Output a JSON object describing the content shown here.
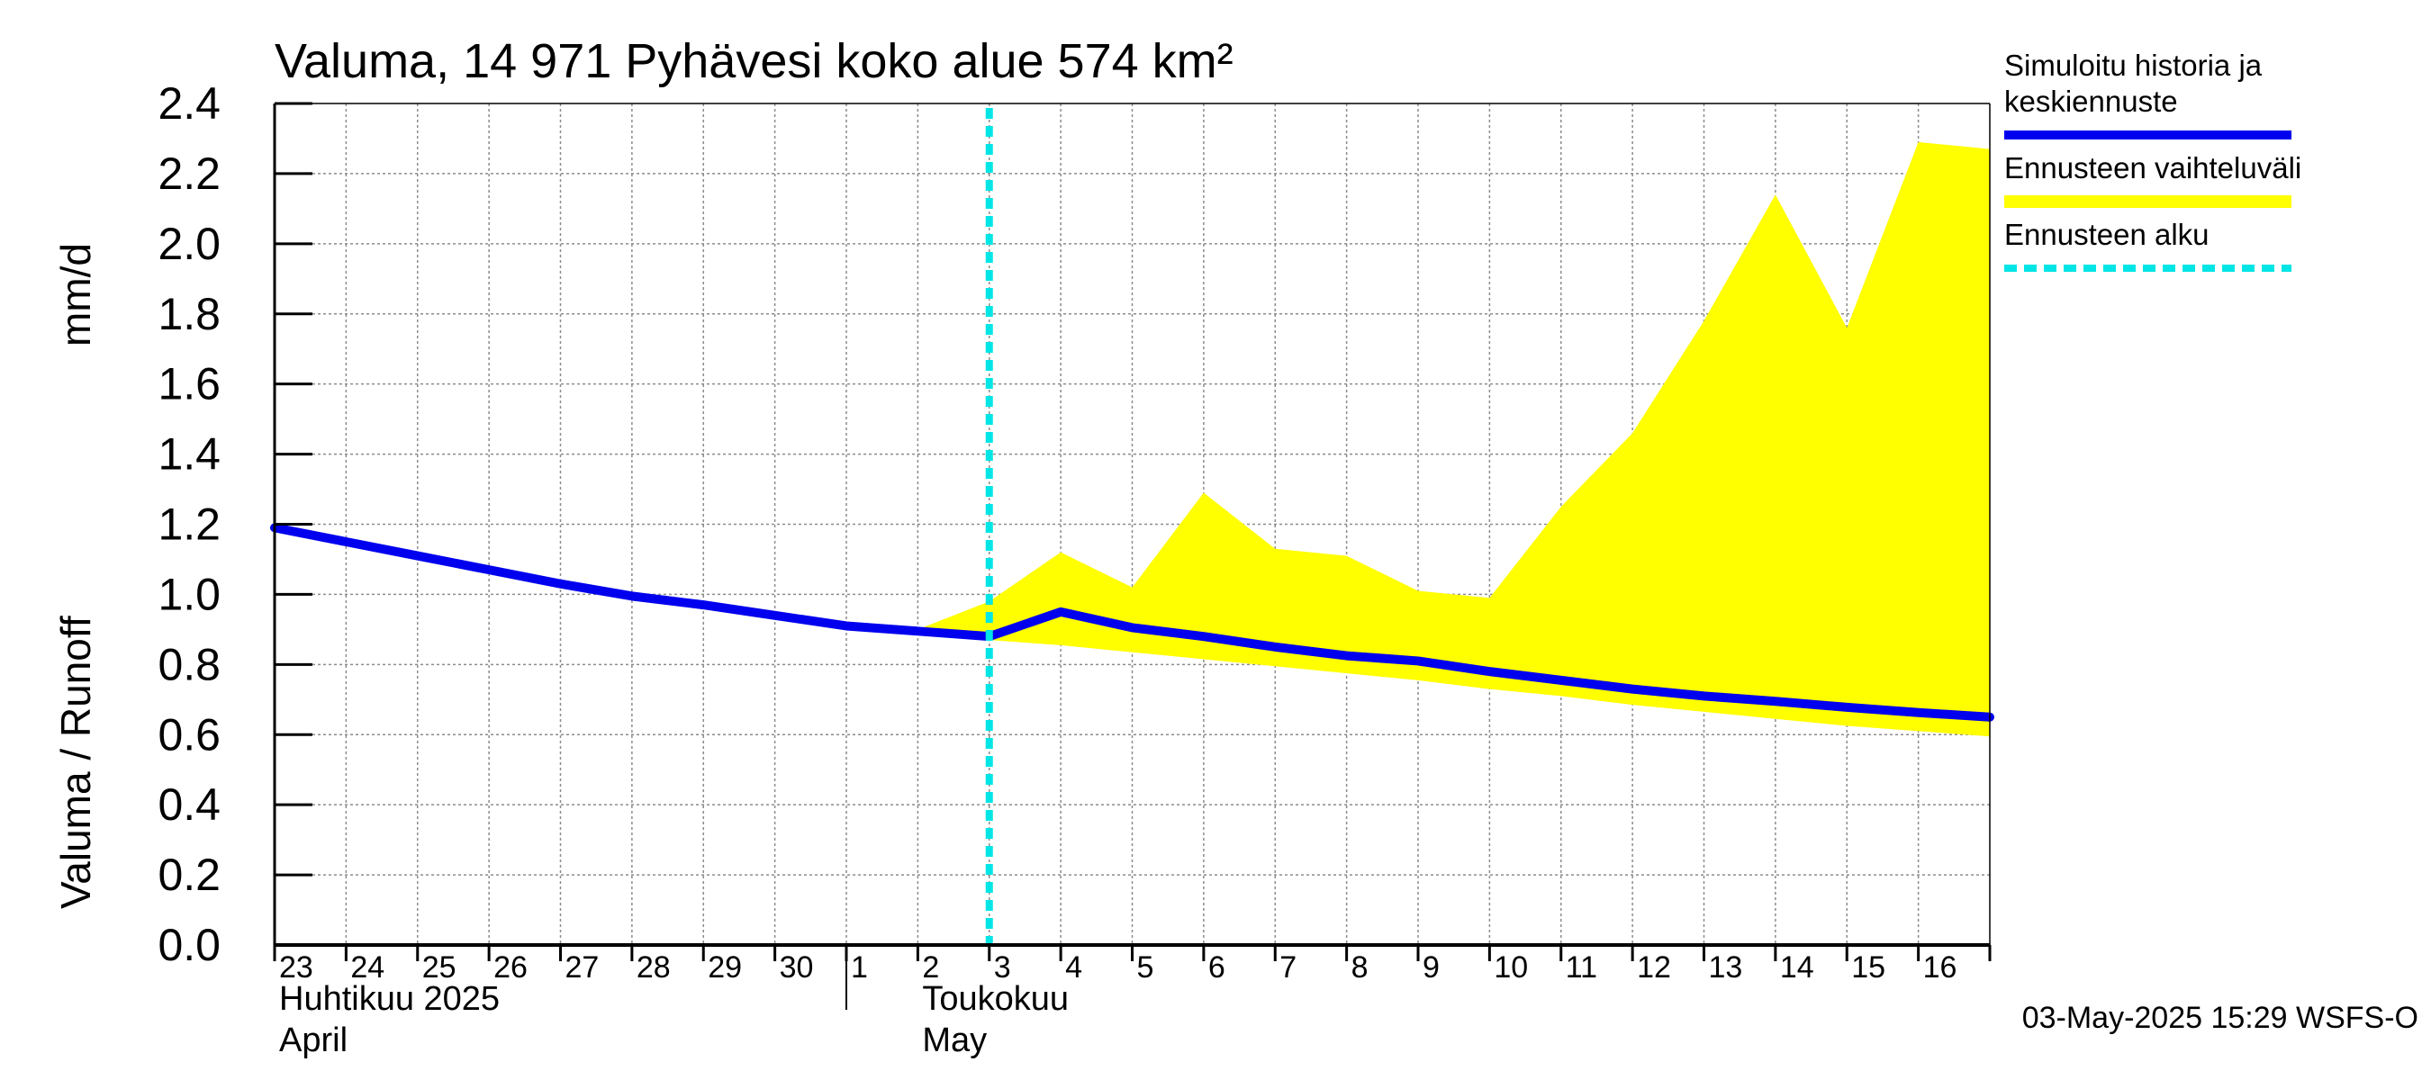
{
  "chart_data": {
    "type": "line",
    "title": "Valuma, 14 971 Pyhävesi koko alue 574 km²",
    "ylabel_left": "Valuma / Runoff",
    "ylabel_right": "mm/d",
    "ylim": [
      0.0,
      2.4
    ],
    "yticks": [
      "0.0",
      "0.2",
      "0.4",
      "0.6",
      "0.8",
      "1.0",
      "1.2",
      "1.4",
      "1.6",
      "1.8",
      "2.0",
      "2.2",
      "2.4"
    ],
    "x_day_range": [
      0,
      24
    ],
    "x_labels": [
      "23",
      "24",
      "25",
      "26",
      "27",
      "28",
      "29",
      "30",
      "1",
      "2",
      "3",
      "4",
      "5",
      "6",
      "7",
      "8",
      "9",
      "10",
      "11",
      "12",
      "13",
      "14",
      "15",
      "16"
    ],
    "month_labels": [
      {
        "fi": "Huhtikuu  2025",
        "en": "April",
        "day": 0
      },
      {
        "fi": "Toukokuu",
        "en": "May",
        "day": 9
      }
    ],
    "month_separator_day": 8,
    "forecast_start_day": 10,
    "series": [
      {
        "name": "Simuloitu historia ja keskiennuste",
        "color": "#0000ee",
        "x": [
          0,
          1,
          2,
          3,
          4,
          5,
          6,
          7,
          8,
          9,
          10,
          11,
          12,
          13,
          14,
          15,
          16,
          17,
          18,
          19,
          20,
          21,
          22,
          23,
          24
        ],
        "values": [
          1.19,
          1.15,
          1.11,
          1.07,
          1.03,
          0.995,
          0.97,
          0.94,
          0.91,
          0.895,
          0.88,
          0.95,
          0.905,
          0.88,
          0.85,
          0.825,
          0.81,
          0.78,
          0.755,
          0.73,
          0.71,
          0.695,
          0.678,
          0.663,
          0.65
        ]
      }
    ],
    "range_band": {
      "name": "Ennusteen vaihteluväli",
      "color": "#ffff00",
      "x": [
        9,
        10,
        11,
        12,
        13,
        14,
        15,
        16,
        17,
        18,
        19,
        20,
        21,
        22,
        23,
        24
      ],
      "upper": [
        0.9,
        0.98,
        1.12,
        1.02,
        1.29,
        1.13,
        1.11,
        1.01,
        0.99,
        1.25,
        1.46,
        1.78,
        2.14,
        1.76,
        2.29,
        2.27
      ],
      "lower": [
        0.9,
        0.87,
        0.855,
        0.835,
        0.815,
        0.795,
        0.775,
        0.755,
        0.73,
        0.71,
        0.685,
        0.665,
        0.645,
        0.625,
        0.61,
        0.595
      ]
    },
    "legend": [
      {
        "label_lines": [
          "Simuloitu historia ja",
          "keskiennuste"
        ],
        "color": "#0000ee",
        "style": "solid"
      },
      {
        "label_lines": [
          "Ennusteen vaihteluväli"
        ],
        "color": "#ffff00",
        "style": "band"
      },
      {
        "label_lines": [
          "Ennusteen alku"
        ],
        "color": "#00e5e5",
        "style": "dashed"
      }
    ],
    "legend_position": "right",
    "footer": "03-May-2025 15:29 WSFS-O",
    "grid": true
  }
}
